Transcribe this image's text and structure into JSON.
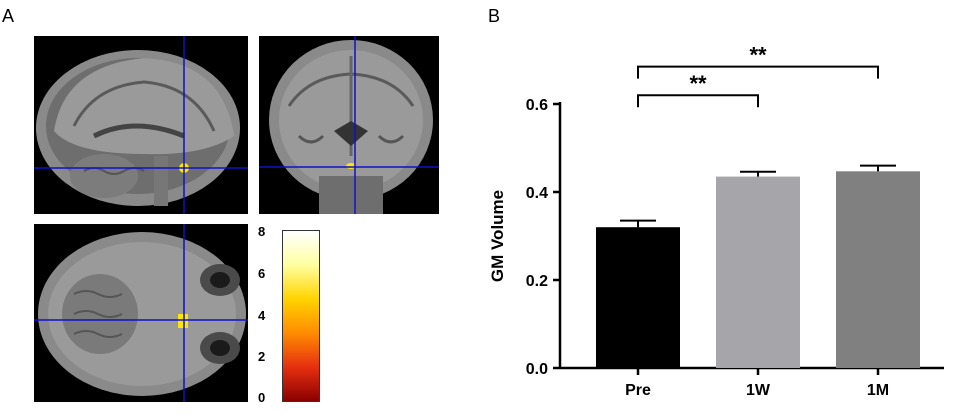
{
  "panels": {
    "a_label": "A",
    "b_label": "B"
  },
  "colorbar": {
    "ticks": [
      "8",
      "6",
      "4",
      "2",
      "0"
    ],
    "min": 0,
    "max": 8,
    "colors": [
      "#8b0000",
      "#e53010",
      "#ff8c00",
      "#ffd400",
      "#ffffa0",
      "#ffffff"
    ]
  },
  "mri": {
    "crosshair_color": "#1010c8",
    "activation_color": "#ffe600"
  },
  "chart_data": {
    "type": "bar",
    "categories": [
      "Pre",
      "1W",
      "1M"
    ],
    "values": [
      0.32,
      0.435,
      0.447
    ],
    "errors": [
      0.015,
      0.011,
      0.013
    ],
    "colors": [
      "#000000",
      "#a6a6aa",
      "#808080"
    ],
    "ylabel": "GM Volume",
    "ylim": [
      0.0,
      0.6
    ],
    "yticks": [
      "0.0",
      "0.2",
      "0.4",
      "0.6"
    ],
    "significance": [
      {
        "from": "Pre",
        "to": "1W",
        "label": "**"
      },
      {
        "from": "Pre",
        "to": "1M",
        "label": "**"
      }
    ]
  }
}
